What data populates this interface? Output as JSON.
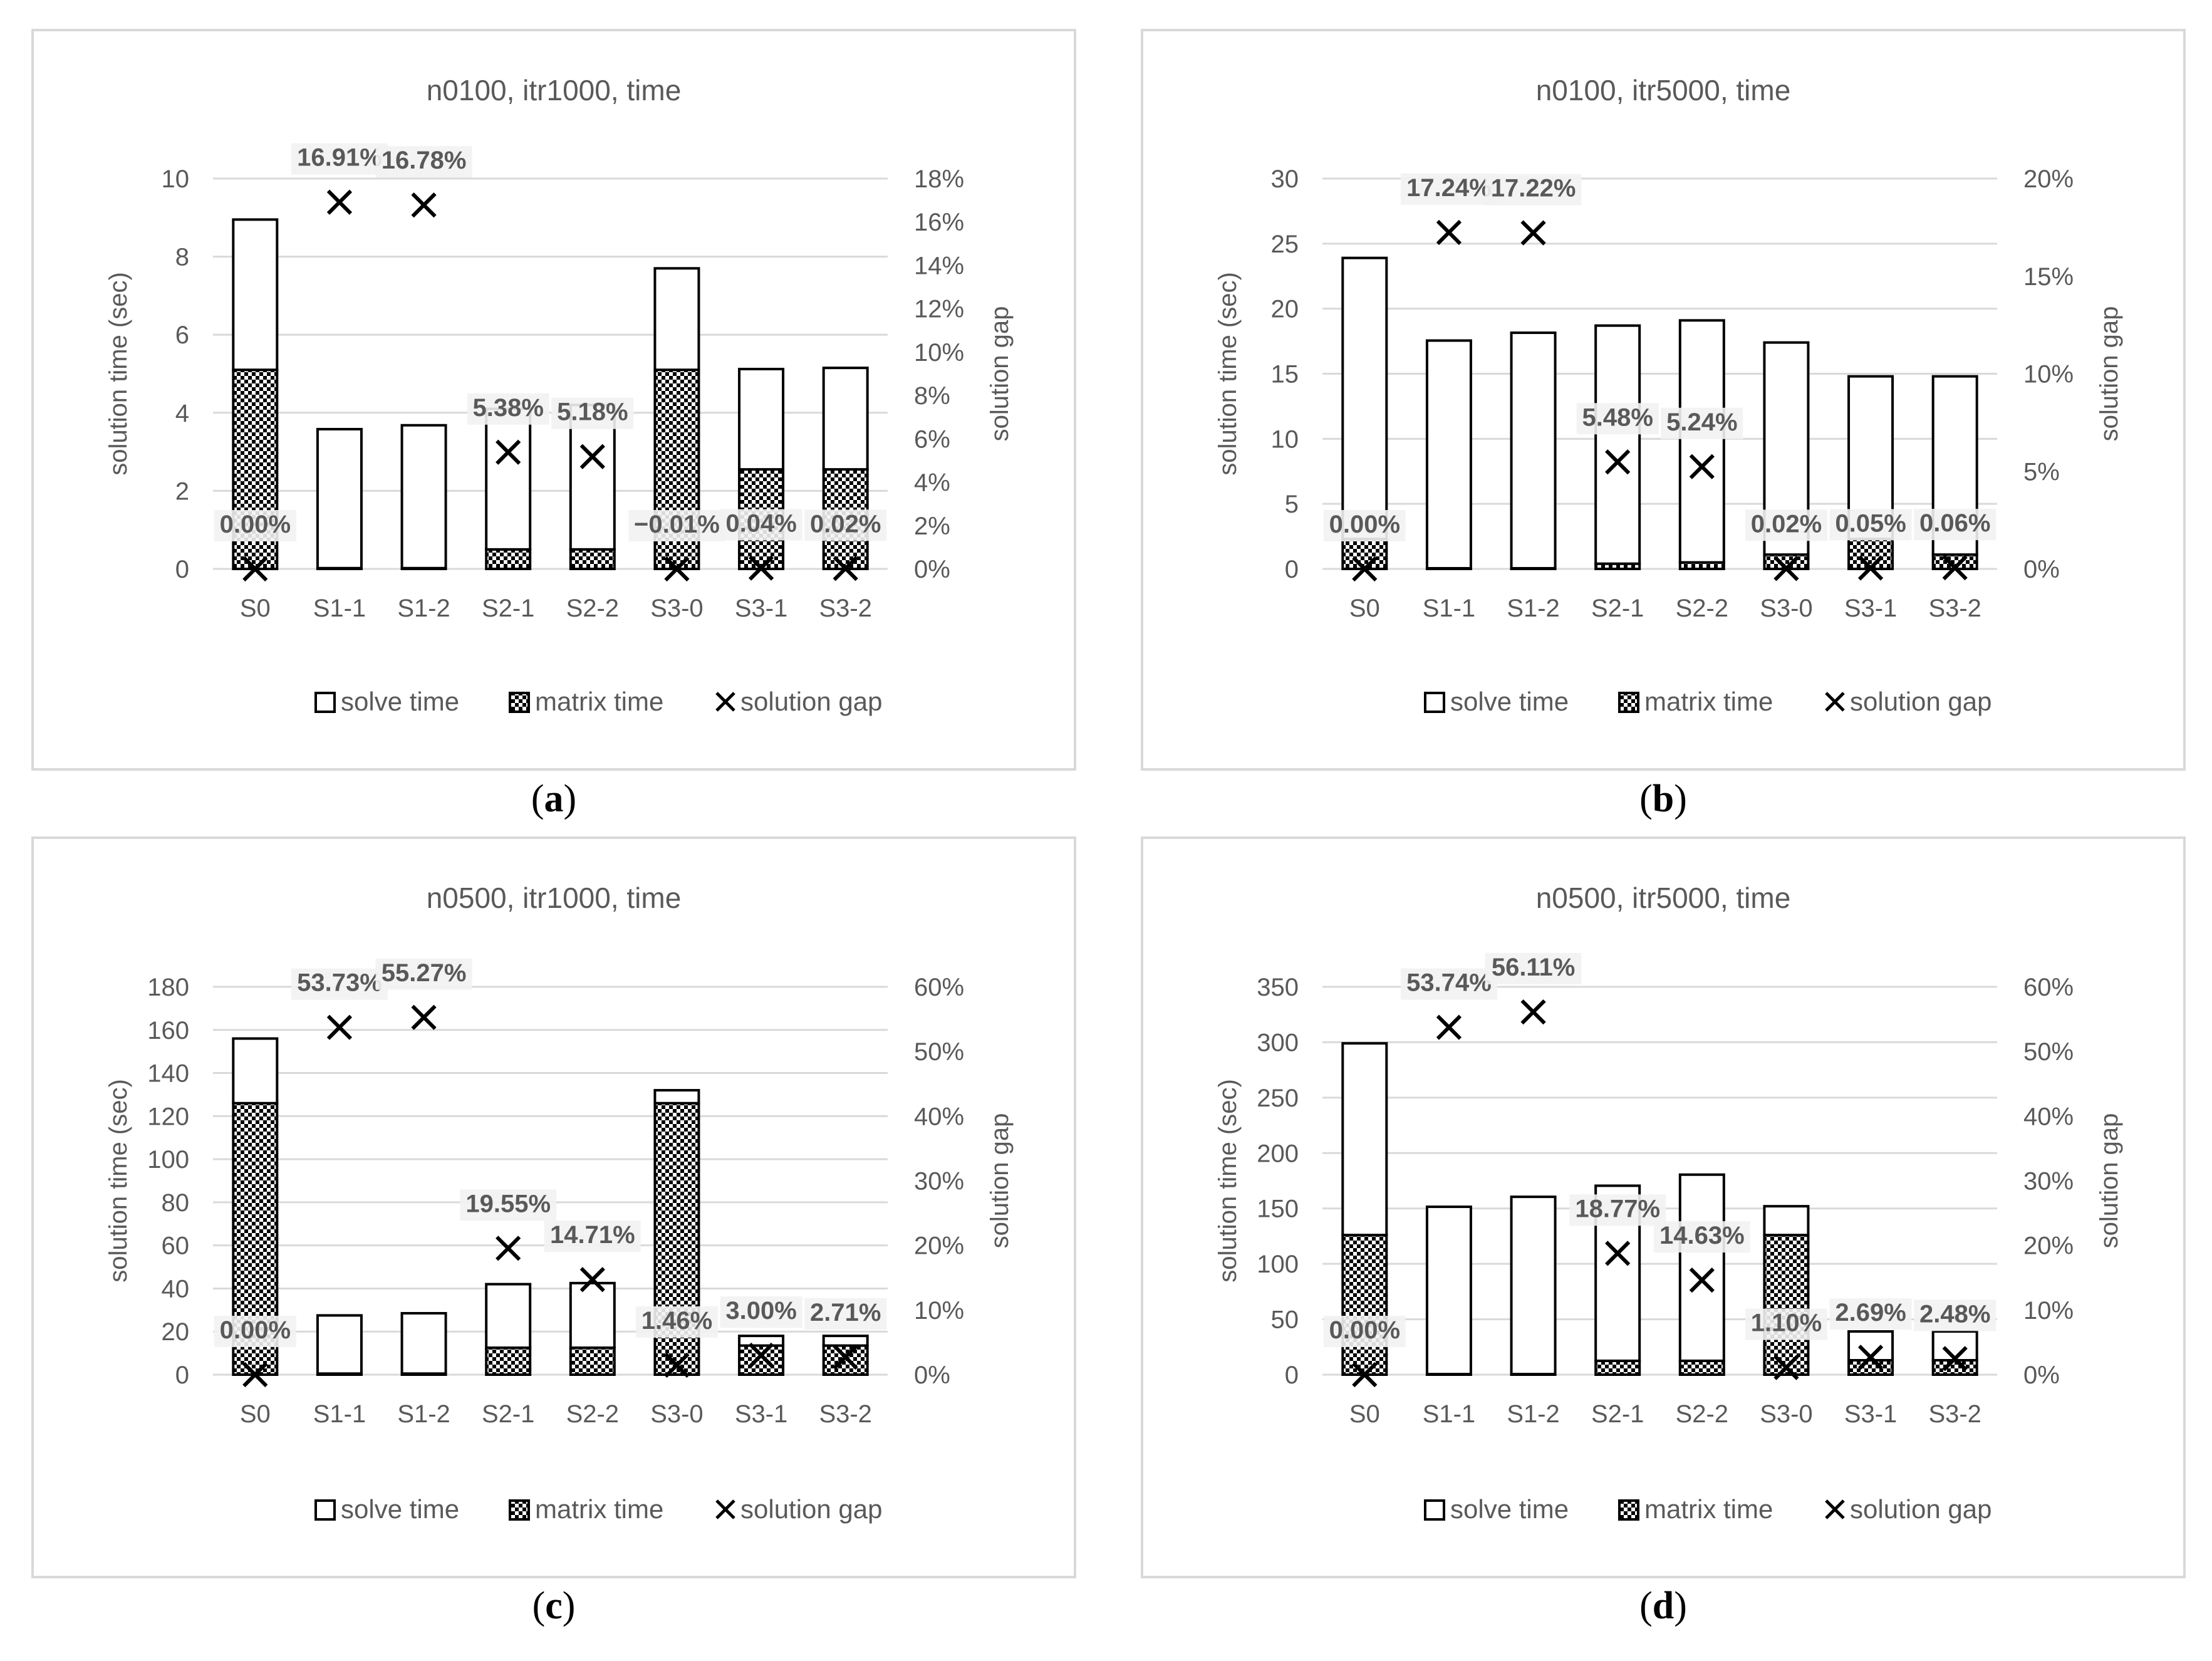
{
  "style": {
    "panel_border": "#d9d9d9",
    "grid": "#d9d9d9",
    "bar_edge": "#000000",
    "text": "#595959",
    "label_box": "#f2f2f2"
  },
  "legend": {
    "solve": "solve time",
    "matrix": "matrix time",
    "gap": "solution gap"
  },
  "chart_data": [
    {
      "type": "bar",
      "caption": "a",
      "title": "n0100, itr1000, time",
      "xlabel": "",
      "ylabel": "solution time (sec)",
      "y2label": "solution gap",
      "categories": [
        "S0",
        "S1-1",
        "S1-2",
        "S2-1",
        "S2-2",
        "S3-0",
        "S3-1",
        "S3-2"
      ],
      "ylim": [
        0,
        10
      ],
      "yticks": [
        0,
        2,
        4,
        6,
        8,
        10
      ],
      "y2lim": [
        0,
        18
      ],
      "y2ticks": [
        0,
        2,
        4,
        6,
        8,
        10,
        12,
        14,
        16,
        18
      ],
      "series": [
        {
          "name": "matrix time",
          "values": [
            5.1,
            0.02,
            0.02,
            0.5,
            0.5,
            5.1,
            2.55,
            2.55
          ]
        },
        {
          "name": "solve time",
          "values": [
            3.85,
            3.56,
            3.66,
            3.6,
            3.7,
            2.6,
            2.57,
            2.6
          ]
        },
        {
          "name": "solution gap",
          "values": [
            0.0,
            16.91,
            16.78,
            5.38,
            5.18,
            -0.01,
            0.04,
            0.02
          ],
          "labels": [
            "0.00%",
            "16.91%",
            "16.78%",
            "5.38%",
            "5.18%",
            "−0.01%",
            "0.04%",
            "0.02%"
          ]
        }
      ]
    },
    {
      "type": "bar",
      "caption": "b",
      "title": "n0100, itr5000, time",
      "xlabel": "",
      "ylabel": "solution time (sec)",
      "y2label": "solution gap",
      "categories": [
        "S0",
        "S1-1",
        "S1-2",
        "S2-1",
        "S2-2",
        "S3-0",
        "S3-1",
        "S3-2"
      ],
      "ylim": [
        0,
        30
      ],
      "yticks": [
        0,
        5,
        10,
        15,
        20,
        25,
        30
      ],
      "y2lim": [
        0,
        20
      ],
      "y2ticks": [
        0,
        5,
        10,
        15,
        20
      ],
      "series": [
        {
          "name": "matrix time",
          "values": [
            2.3,
            0.05,
            0.05,
            0.4,
            0.5,
            1.1,
            2.3,
            1.1
          ]
        },
        {
          "name": "solve time",
          "values": [
            21.6,
            17.5,
            18.1,
            18.3,
            18.6,
            16.3,
            12.5,
            13.7
          ]
        },
        {
          "name": "solution gap",
          "values": [
            0.0,
            17.24,
            17.22,
            5.48,
            5.24,
            0.02,
            0.05,
            0.06
          ],
          "labels": [
            "0.00%",
            "17.24%",
            "17.22%",
            "5.48%",
            "5.24%",
            "0.02%",
            "0.05%",
            "0.06%"
          ]
        }
      ]
    },
    {
      "type": "bar",
      "caption": "c",
      "title": "n0500, itr1000, time",
      "xlabel": "",
      "ylabel": "solution time (sec)",
      "y2label": "solution gap",
      "categories": [
        "S0",
        "S1-1",
        "S1-2",
        "S2-1",
        "S2-2",
        "S3-0",
        "S3-1",
        "S3-2"
      ],
      "ylim": [
        0,
        180
      ],
      "yticks": [
        0,
        20,
        40,
        60,
        80,
        100,
        120,
        140,
        160,
        180
      ],
      "y2lim": [
        0,
        60
      ],
      "y2ticks": [
        0,
        10,
        20,
        30,
        40,
        50,
        60
      ],
      "series": [
        {
          "name": "matrix time",
          "values": [
            126,
            0.5,
            0.5,
            12.5,
            12.5,
            126,
            13.5,
            13.5
          ]
        },
        {
          "name": "solve time",
          "values": [
            30,
            27,
            28,
            29.5,
            30,
            6,
            4.5,
            4.5
          ]
        },
        {
          "name": "solution gap",
          "values": [
            0.0,
            53.73,
            55.27,
            19.55,
            14.71,
            1.46,
            3.0,
            2.71
          ],
          "labels": [
            "0.00%",
            "53.73%",
            "55.27%",
            "19.55%",
            "14.71%",
            "1.46%",
            "3.00%",
            "2.71%"
          ]
        }
      ]
    },
    {
      "type": "bar",
      "caption": "d",
      "title": "n0500, itr5000, time",
      "xlabel": "",
      "ylabel": "solution time (sec)",
      "y2label": "solution gap",
      "categories": [
        "S0",
        "S1-1",
        "S1-2",
        "S2-1",
        "S2-2",
        "S3-0",
        "S3-1",
        "S3-2"
      ],
      "ylim": [
        0,
        350
      ],
      "yticks": [
        0,
        50,
        100,
        150,
        200,
        250,
        300,
        350
      ],
      "y2lim": [
        0,
        60
      ],
      "y2ticks": [
        0,
        10,
        20,
        30,
        40,
        50,
        60
      ],
      "series": [
        {
          "name": "matrix time",
          "values": [
            126,
            0.5,
            0.5,
            12.5,
            12.5,
            126,
            13,
            13
          ]
        },
        {
          "name": "solve time",
          "values": [
            173,
            151,
            160,
            158,
            168,
            26,
            26,
            26
          ]
        },
        {
          "name": "solution gap",
          "values": [
            0.0,
            53.74,
            56.11,
            18.77,
            14.63,
            1.1,
            2.69,
            2.48
          ],
          "labels": [
            "0.00%",
            "53.74%",
            "56.11%",
            "18.77%",
            "14.63%",
            "1.10%",
            "2.69%",
            "2.48%"
          ]
        }
      ]
    }
  ]
}
